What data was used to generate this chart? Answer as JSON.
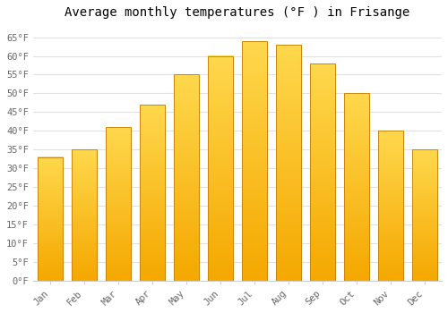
{
  "title": "Average monthly temperatures (°F ) in Frisange",
  "months": [
    "Jan",
    "Feb",
    "Mar",
    "Apr",
    "May",
    "Jun",
    "Jul",
    "Aug",
    "Sep",
    "Oct",
    "Nov",
    "Dec"
  ],
  "values": [
    33,
    35,
    41,
    47,
    55,
    60,
    64,
    63,
    58,
    50,
    40,
    35
  ],
  "bar_color_top": "#FFD84D",
  "bar_color_bottom": "#F5A800",
  "bar_edge_color": "#C8870A",
  "ylim": [
    0,
    68
  ],
  "yticks": [
    0,
    5,
    10,
    15,
    20,
    25,
    30,
    35,
    40,
    45,
    50,
    55,
    60,
    65
  ],
  "ytick_labels": [
    "0°F",
    "5°F",
    "10°F",
    "15°F",
    "20°F",
    "25°F",
    "30°F",
    "35°F",
    "40°F",
    "45°F",
    "50°F",
    "55°F",
    "60°F",
    "65°F"
  ],
  "title_fontsize": 10,
  "tick_fontsize": 7.5,
  "background_color": "#ffffff",
  "grid_color": "#e0e0e0",
  "title_font": "monospace",
  "bar_width": 0.75,
  "figsize": [
    5.0,
    3.5
  ],
  "dpi": 100
}
